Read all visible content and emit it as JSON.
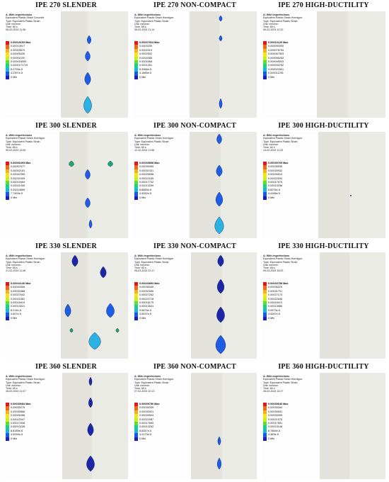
{
  "colors": {
    "legend": [
      "#e8141a",
      "#f06a1c",
      "#f3b21d",
      "#f5e41c",
      "#c8ef1d",
      "#58e132",
      "#1ccf8d",
      "#18b6dc",
      "#1658e8",
      "#1a1fb8"
    ],
    "blob_dark": "#1b27a5",
    "blob_mid": "#1e5de6",
    "blob_light": "#2ab3e0",
    "blob_green": "#1fa66a"
  },
  "cells": [
    {
      "title": "IPE 270 SLENDER",
      "info": {
        "line1": "A: With imperfections",
        "line2": "Equivalent Plastic Strain Concrete",
        "line3": "Type: Equivalent Plastic Strain",
        "line4": "Unit: mm/mm",
        "line5": "Time: 65 s",
        "line6": "06-02-2024 11:36"
      },
      "legend": {
        "max": "0.00018153 Max",
        "vals": [
          "0.00013917",
          "0.00009670",
          "0.00005430",
          "0.00001190",
          "0.000016953",
          "0.0000171719",
          "8.4793e-5",
          "4.2397e-5"
        ],
        "min": "0 Min"
      }
    },
    {
      "title": "IPE 270 NON-COMPACT",
      "info": {
        "line1": "A: With imperfections",
        "line2": "Equivalent Plastic Strain Hormigon",
        "line3": "Type: Equivalent Plastic Strain",
        "line4": "Unit: mm/mm",
        "line5": "Time: 65 s",
        "line6": "06-02-2024 11:14"
      },
      "legend": {
        "max": "0.00037524 Max",
        "vals": [
          "0.0003335",
          "0.0002919",
          "0.0002502",
          "0.0002085",
          "0.0001668",
          "0.0001251",
          "8.3366e-5",
          "4.1685e-5"
        ],
        "min": "0 Min"
      }
    },
    {
      "title": "IPE 270 HIGH-DUCTILITY",
      "info": {
        "line1": "A: With imperfections",
        "line2": "Equivalent Plastic Strain Hormigon",
        "line3": "Type: Equivalent Plastic Strain",
        "line4": "Unit: mm/mm",
        "line5": "Time: 65 s",
        "line6": "06-02-2024 12:20"
      },
      "legend": {
        "max": "0.00010125 Max",
        "vals": [
          "0.000090000",
          "0.000078754",
          "0.000067503",
          "0.000056253",
          "0.000045003",
          "0.000033752",
          "0.000022501",
          "0.000011251"
        ],
        "min": "0 Min"
      }
    },
    {
      "title": "IPE 300 SLENDER",
      "info": {
        "line1": "A: With imperfections",
        "line2": "Equivalent Plastic Strain Hormigon",
        "line3": "Type: Equivalent Plastic Strain",
        "line4": "Unit: mm/mm",
        "line5": "Time: 65 s",
        "line6": "09-02-2024 14:50"
      },
      "legend": {
        "max": "0.00066493 Max",
        "vals": [
          "0.00057577",
          "0.00052161",
          "0.00042399",
          "0.00031509",
          "0.00019464",
          "0.00021430",
          "0.00014809",
          "7.7493e-5"
        ],
        "min": "0 Min"
      }
    },
    {
      "title": "IPE 300 NON-COMPACT",
      "info": {
        "line1": "A: With imperfections",
        "line2": "Equivalent Plastic Strain Hormigon",
        "line3": "Type: Equivalent Plastic Strain",
        "line4": "Unit: mm/mm",
        "line5": "Time: 65 s",
        "line6": "12-02-2024 11:56"
      },
      "legend": {
        "max": "0.00039898 Max",
        "vals": [
          "0.00035465",
          "0.00031031",
          "0.00026598",
          "0.00022165",
          "0.00017732",
          "0.00013299",
          "8.8665e-5",
          "4.4332e-5"
        ],
        "min": "0 Min"
      }
    },
    {
      "title": "IPE 300 HIGH-DUCTILITY",
      "info": {
        "line1": "A: With imperfections",
        "line2": "Equivalent Plastic Strain Hormigon",
        "line3": "Type: Equivalent Plastic Strain",
        "line4": "Unit: mm/mm",
        "line5": "Time: 65 s",
        "line6": "14-02-2024 11:23"
      },
      "legend": {
        "max": "0.00039769 Max",
        "vals": [
          "0.00035535",
          "0.00030932",
          "0.00026513",
          "0.00022094",
          "0.00017675",
          "0.00013256",
          "8.8376e-5",
          "4.4188e-5"
        ],
        "min": "0 Min"
      }
    },
    {
      "title": "IPE 330 SLENDER",
      "info": {
        "line1": "A: With imperfections",
        "line2": "Equivalent Plastic Strain Hormigon",
        "line3": "Type: Equivalent Plastic Strain",
        "line4": "Unit: mm/mm",
        "line5": "Time: 65 s",
        "line6": "21-02-2024 11:48"
      },
      "legend": {
        "max": "0.00044146 Max",
        "vals": [
          "0.00040056",
          "0.00032488",
          "0.00027642",
          "0.00021981",
          "0.00018419",
          "0.00013021",
          "8.214e-5",
          "4.607e-5"
        ],
        "min": "0 Min"
      }
    },
    {
      "title": "IPE 330 NON-COMPACT",
      "info": {
        "line1": "A: With imperfections",
        "line2": "Equivalent Plastic Strain Hormigon",
        "line3": "Type: Equivalent Plastic Strain",
        "line4": "Unit: mm/mm",
        "line5": "Time: 65 s",
        "line6": "05-03-2024 22:17"
      },
      "legend": {
        "max": "0.00040893 Max",
        "vals": [
          "0.00036349",
          "0.00031806",
          "0.00027262",
          "0.00022718",
          "0.00018175",
          "0.00013631",
          "9.0875e-5",
          "4.5437e-5"
        ],
        "min": "0 Min"
      }
    },
    {
      "title": "IPE 330 HIGH-DUCTILITY",
      "info": {
        "line1": "A: With imperfections",
        "line2": "Equivalent Plastic Strain Hormigon",
        "line3": "Type: Equivalent Plastic Strain",
        "line4": "Unit: mm/mm",
        "line5": "Time: 65 s",
        "line6": "09-03-2024 18:53"
      },
      "legend": {
        "max": "0.00040758 Max",
        "vals": [
          "0.00036229",
          "0.00031701",
          "0.00027173",
          "0.00022645",
          "0.00018115",
          "0.00013586",
          "9.0573e-5",
          "4.5287e-5"
        ],
        "min": "0 Min"
      }
    },
    {
      "title": "IPE 360 SLENDER",
      "info": {
        "line1": "A: With imperfections",
        "line2": "Equivalent Plastic Strain Hormigon",
        "line3": "Type: Equivalent Plastic Strain",
        "line4": "Unit: mm/mm",
        "line5": "Time: 65 s",
        "line6": "28-02-2024 11:47"
      },
      "legend": {
        "max": "0.00039684 Max",
        "vals": [
          "0.00035275",
          "0.00030866",
          "0.00026456",
          "0.00022047",
          "0.00017638",
          "0.00013228",
          "8.8189e-5",
          "4.4094e-5"
        ],
        "min": "0 Min"
      }
    },
    {
      "title": "IPE 360 NON-COMPACT",
      "info": {
        "line1": "A: With imperfections",
        "line2": "Equivalent Plastic Strain Hormigon",
        "line3": "Type: Equivalent Plastic Strain",
        "line4": "Unit: mm/mm",
        "line5": "Time: 65 s",
        "line6": "27-02-2024 10:13"
      },
      "legend": {
        "max": "0.00039756 Max",
        "vals": [
          "0.00035339",
          "0.00030921",
          "0.00026504",
          "0.00022087",
          "0.00017669",
          "0.00013252",
          "8.8347e-5",
          "4.4173e-5"
        ],
        "min": "0 Min"
      }
    },
    {
      "title": "IPE 360 HIGH-DUCTILITY",
      "info": {
        "line1": "A: With imperfections",
        "line2": "Equivalent Plastic Strain Hormigon",
        "line3": "Type: Equivalent Plastic Strain",
        "line4": "Unit: mm/mm",
        "line5": "Time: 65 s",
        "line6": "28-02-2024 10:27"
      },
      "legend": {
        "max": "0.00039640 Max",
        "vals": [
          "0.00035284",
          "0.00030831",
          "0.00026399",
          "0.00021975",
          "0.00017551",
          "0.00013148",
          "8.7664e-5",
          "4.383e-5"
        ],
        "min": "0 Min"
      }
    }
  ]
}
